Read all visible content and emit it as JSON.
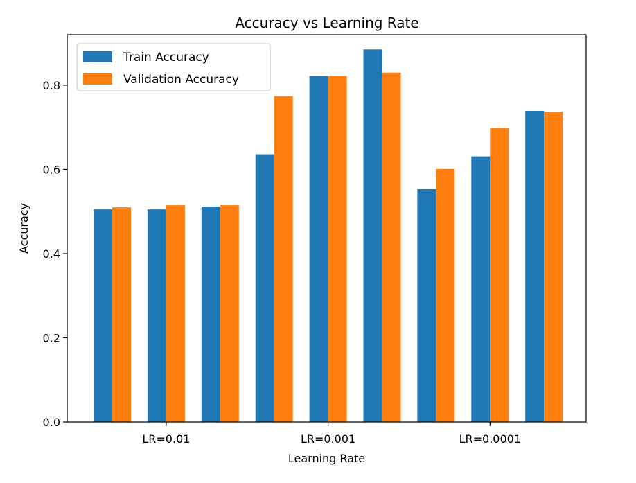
{
  "chart_data": {
    "type": "bar",
    "title": "Accuracy vs Learning Rate",
    "xlabel": "Learning Rate",
    "ylabel": "Accuracy",
    "ylim": [
      0,
      0.92
    ],
    "yticks": [
      0.0,
      0.2,
      0.4,
      0.6,
      0.8
    ],
    "ytick_labels": [
      "0.0",
      "0.2",
      "0.4",
      "0.6",
      "0.8"
    ],
    "group_labels": [
      {
        "label": "LR=0.01",
        "center_index": 1
      },
      {
        "label": "LR=0.001",
        "center_index": 4
      },
      {
        "label": "LR=0.0001",
        "center_index": 7
      }
    ],
    "legend_position": "top-left",
    "series": [
      {
        "name": "Train Accuracy",
        "color": "#1f77b4",
        "values": [
          0.505,
          0.505,
          0.512,
          0.636,
          0.822,
          0.885,
          0.553,
          0.631,
          0.739
        ]
      },
      {
        "name": "Validation Accuracy",
        "color": "#ff7f0e",
        "values": [
          0.51,
          0.515,
          0.515,
          0.774,
          0.822,
          0.83,
          0.601,
          0.699,
          0.737
        ]
      }
    ]
  }
}
